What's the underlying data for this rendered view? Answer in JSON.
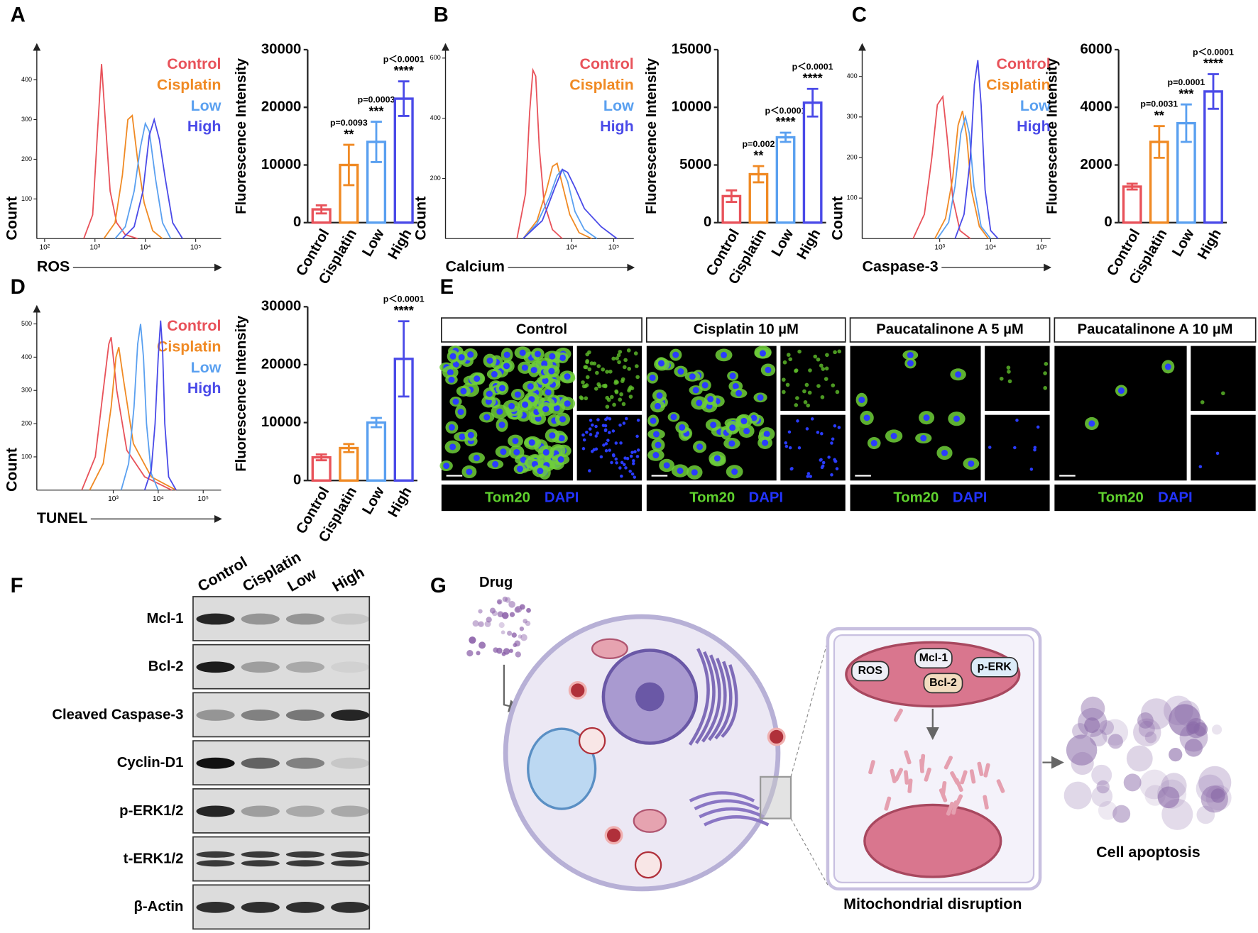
{
  "panel_letters": [
    "A",
    "B",
    "C",
    "D",
    "E",
    "F",
    "G"
  ],
  "chart_data": [
    {
      "type": "line",
      "x_scale": "log",
      "ylabel": "Count",
      "xlabel": "ROS",
      "legend": "upper right",
      "xlim": [
        70,
        320000
      ],
      "ylim": [
        0,
        470
      ],
      "xticks": [
        {
          "value": 100,
          "label": "10²"
        },
        {
          "value": 1000,
          "label": "10³"
        },
        {
          "value": 10000,
          "label": "10⁴"
        },
        {
          "value": 100000,
          "label": "10⁵"
        }
      ],
      "yticks": [
        100,
        200,
        300,
        400
      ],
      "series": [
        {
          "name": "Control",
          "color": "#e8525a",
          "x": [
            600,
            900,
            1100,
            1350,
            1600,
            2000,
            2700,
            4000,
            7000
          ],
          "values": [
            0,
            60,
            250,
            440,
            300,
            120,
            40,
            10,
            0
          ]
        },
        {
          "name": "Cisplatin",
          "color": "#f08a24",
          "x": [
            1500,
            2500,
            3500,
            4500,
            5500,
            7000,
            9500,
            14000,
            22000
          ],
          "values": [
            0,
            40,
            160,
            300,
            310,
            200,
            90,
            20,
            0
          ]
        },
        {
          "name": "Low",
          "color": "#5aa0f0",
          "x": [
            2500,
            4000,
            6000,
            8000,
            10000,
            12000,
            16000,
            22000,
            32000
          ],
          "values": [
            0,
            30,
            120,
            230,
            290,
            270,
            150,
            40,
            0
          ]
        },
        {
          "name": "High",
          "color": "#4a4ae8",
          "x": [
            3500,
            6000,
            9000,
            12000,
            15000,
            19000,
            25000,
            35000,
            55000
          ],
          "values": [
            0,
            30,
            120,
            260,
            300,
            250,
            150,
            40,
            0
          ]
        }
      ]
    },
    {
      "type": "bar",
      "ylabel": "Fluorescence Intensity",
      "categories": [
        "Control",
        "Cisplatin",
        "Low",
        "High"
      ],
      "values": [
        2300,
        10000,
        14000,
        21500
      ],
      "errors": [
        700,
        3500,
        3500,
        3000
      ],
      "colors": [
        "#e8525a",
        "#f08a24",
        "#5aa0f0",
        "#4a4ae8"
      ],
      "ylim": [
        0,
        30000
      ],
      "yticks": [
        0,
        10000,
        20000,
        30000
      ],
      "p_labels": [
        null,
        "p=0.0093",
        "p=0.0003",
        "p＜0.0001"
      ],
      "star_labels": [
        null,
        "**",
        "***",
        "****"
      ]
    },
    {
      "type": "line",
      "x_scale": "log",
      "ylabel": "Count",
      "xlabel": "Calcium",
      "legend": "upper right",
      "xlim": [
        10,
        300000
      ],
      "ylim": [
        0,
        620
      ],
      "xticks": [
        {
          "value": 10000,
          "label": "10⁴"
        },
        {
          "value": 100000,
          "label": "10⁵"
        }
      ],
      "yticks": [
        200,
        400,
        600
      ],
      "series": [
        {
          "name": "Control",
          "color": "#e8525a",
          "x": [
            500,
            800,
            1000,
            1200,
            1400,
            1700,
            2200,
            3500,
            6000
          ],
          "values": [
            0,
            150,
            420,
            560,
            540,
            300,
            120,
            30,
            0
          ]
        },
        {
          "name": "Cisplatin",
          "color": "#f08a24",
          "x": [
            700,
            1500,
            2500,
            3500,
            4500,
            6000,
            9000,
            15000,
            30000
          ],
          "values": [
            0,
            60,
            160,
            240,
            250,
            180,
            80,
            20,
            0
          ]
        },
        {
          "name": "Low",
          "color": "#5aa0f0",
          "x": [
            700,
            1500,
            3000,
            4500,
            6000,
            8000,
            12000,
            20000,
            40000
          ],
          "values": [
            0,
            50,
            140,
            210,
            230,
            190,
            90,
            30,
            0
          ]
        },
        {
          "name": "High",
          "color": "#4a4ae8",
          "x": [
            700,
            2000,
            4000,
            6000,
            8000,
            12000,
            20000,
            50000,
            120000
          ],
          "values": [
            0,
            60,
            170,
            230,
            220,
            170,
            100,
            40,
            0
          ]
        }
      ]
    },
    {
      "type": "bar",
      "ylabel": "Fluorescence Intensity",
      "categories": [
        "Control",
        "Cisplatin",
        "Low",
        "High"
      ],
      "values": [
        2300,
        4200,
        7400,
        10400
      ],
      "errors": [
        500,
        700,
        400,
        1200
      ],
      "colors": [
        "#e8525a",
        "#f08a24",
        "#5aa0f0",
        "#4a4ae8"
      ],
      "ylim": [
        0,
        15000
      ],
      "yticks": [
        0,
        5000,
        10000,
        15000
      ],
      "p_labels": [
        null,
        "p=0.002",
        "p＜0.0001",
        "p＜0.0001"
      ],
      "star_labels": [
        null,
        "**",
        "****",
        "****"
      ]
    },
    {
      "type": "line",
      "x_scale": "log",
      "ylabel": "Count",
      "xlabel": "Caspase-3",
      "legend": "upper right",
      "xlim": [
        30,
        150000
      ],
      "ylim": [
        0,
        460
      ],
      "xticks": [
        {
          "value": 1000,
          "label": "10³"
        },
        {
          "value": 10000,
          "label": "10⁴"
        },
        {
          "value": 100000,
          "label": "10⁵"
        }
      ],
      "yticks": [
        100,
        200,
        300,
        400
      ],
      "series": [
        {
          "name": "Control",
          "color": "#e8525a",
          "x": [
            300,
            500,
            700,
            900,
            1150,
            1400,
            1800,
            2500,
            4000
          ],
          "values": [
            0,
            60,
            200,
            330,
            350,
            250,
            100,
            20,
            0
          ]
        },
        {
          "name": "Cisplatin",
          "color": "#f08a24",
          "x": [
            800,
            1300,
            1800,
            2300,
            2800,
            3400,
            4200,
            6000,
            9000
          ],
          "values": [
            0,
            50,
            150,
            280,
            315,
            250,
            120,
            30,
            0
          ]
        },
        {
          "name": "Low",
          "color": "#5aa0f0",
          "x": [
            900,
            1500,
            2000,
            2600,
            3200,
            3800,
            4700,
            6500,
            10000
          ],
          "values": [
            0,
            40,
            130,
            260,
            300,
            260,
            130,
            30,
            0
          ]
        },
        {
          "name": "High",
          "color": "#4a4ae8",
          "x": [
            2000,
            3000,
            4000,
            4800,
            5600,
            6500,
            7800,
            10000,
            14000
          ],
          "values": [
            0,
            60,
            200,
            380,
            440,
            330,
            120,
            20,
            0
          ]
        }
      ]
    },
    {
      "type": "bar",
      "ylabel": "Fluorescence Intensity",
      "categories": [
        "Control",
        "Cisplatin",
        "Low",
        "High"
      ],
      "values": [
        1250,
        2800,
        3450,
        4550
      ],
      "errors": [
        100,
        550,
        650,
        600
      ],
      "colors": [
        "#e8525a",
        "#f08a24",
        "#5aa0f0",
        "#4a4ae8"
      ],
      "ylim": [
        0,
        6000
      ],
      "yticks": [
        0,
        2000,
        4000,
        6000
      ],
      "p_labels": [
        null,
        "p=0.0031",
        "p=0.0001",
        "p＜0.0001"
      ],
      "star_labels": [
        null,
        "**",
        "***",
        "****"
      ]
    },
    {
      "type": "line",
      "x_scale": "log",
      "ylabel": "Count",
      "xlabel": "TUNEL",
      "legend": "upper right",
      "xlim": [
        20,
        250000
      ],
      "ylim": [
        0,
        530
      ],
      "xticks": [
        {
          "value": 1000,
          "label": "10³"
        },
        {
          "value": 10000,
          "label": "10⁴"
        },
        {
          "value": 100000,
          "label": "10⁵"
        }
      ],
      "yticks": [
        100,
        200,
        300,
        400,
        500
      ],
      "series": [
        {
          "name": "Control",
          "color": "#e8525a",
          "x": [
            200,
            400,
            600,
            800,
            900,
            1200,
            2000,
            5000,
            20000
          ],
          "values": [
            0,
            100,
            300,
            440,
            460,
            300,
            120,
            40,
            0
          ]
        },
        {
          "name": "Cisplatin",
          "color": "#f08a24",
          "x": [
            300,
            600,
            900,
            1150,
            1330,
            1700,
            2800,
            7000,
            25000
          ],
          "values": [
            0,
            80,
            250,
            400,
            430,
            330,
            140,
            40,
            0
          ]
        },
        {
          "name": "Low",
          "color": "#5aa0f0",
          "x": [
            1500,
            2200,
            2900,
            3500,
            4050,
            4700,
            5500,
            7000,
            10000
          ],
          "values": [
            0,
            80,
            250,
            440,
            500,
            400,
            200,
            50,
            0
          ]
        },
        {
          "name": "High",
          "color": "#4a4ae8",
          "x": [
            5000,
            7000,
            8500,
            10000,
            11300,
            12500,
            14000,
            17000,
            25000
          ],
          "values": [
            0,
            60,
            200,
            400,
            510,
            420,
            200,
            40,
            0
          ]
        }
      ]
    },
    {
      "type": "bar",
      "ylabel": "Fluorescence Intensity",
      "categories": [
        "Control",
        "Cisplatin",
        "Low",
        "High"
      ],
      "values": [
        4000,
        5600,
        10000,
        21000
      ],
      "errors": [
        500,
        700,
        800,
        6500
      ],
      "colors": [
        "#e8525a",
        "#f08a24",
        "#5aa0f0",
        "#4a4ae8"
      ],
      "ylim": [
        0,
        30000
      ],
      "yticks": [
        0,
        10000,
        20000,
        30000
      ],
      "p_labels": [
        null,
        null,
        null,
        "p＜0.0001"
      ],
      "star_labels": [
        null,
        null,
        null,
        "****"
      ]
    }
  ],
  "microscopy": {
    "conditions": [
      "Control",
      "Cisplatin 10 µM",
      "Paucatalinone A 5 µM",
      "Paucatalinone A 10 µM"
    ],
    "stain_labels": [
      "Tom20",
      "DAPI"
    ]
  },
  "western_blot": {
    "lanes": [
      "Control",
      "Cisplatin",
      "Low",
      "High"
    ],
    "proteins": [
      "Mcl-1",
      "Bcl-2",
      "Cleaved Caspase-3",
      "Cyclin-D1",
      "p-ERK1/2",
      "t-ERK1/2",
      "β-Actin"
    ]
  },
  "schematic": {
    "drug": "Drug",
    "markers": [
      "ROS",
      "Mcl-1",
      "Bcl-2",
      "p-ERK"
    ],
    "mito_caption": "Mitochondrial disruption",
    "outcome": "Cell apoptosis"
  }
}
